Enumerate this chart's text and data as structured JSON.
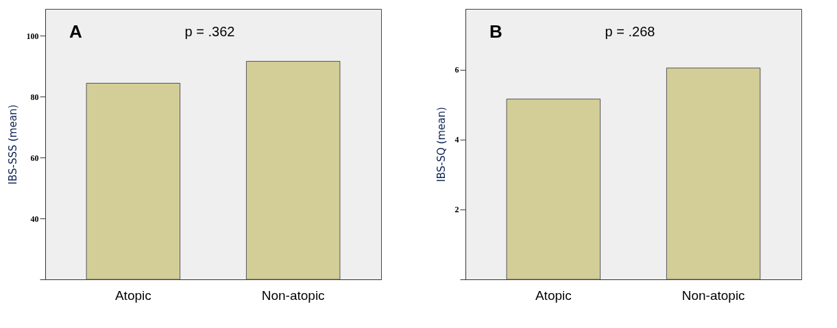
{
  "chart_data": [
    {
      "type": "bar",
      "ylabel": "IBS-SSS (mean)",
      "categories": [
        "Atopic",
        "Non-atopic"
      ],
      "values": [
        84.4,
        91.6
      ],
      "color": "#d3ce98",
      "ylim": [
        20,
        108.8
      ],
      "yticks": [
        {
          "value": 20,
          "label": null
        },
        40,
        60,
        80,
        100
      ],
      "annotations": [
        "A",
        "p = .362"
      ],
      "grid": false
    },
    {
      "type": "bar",
      "ylabel": "IBS-SQ (mean)",
      "categories": [
        "Atopic",
        "Non-atopic"
      ],
      "values": [
        5.16,
        6.05
      ],
      "color": "#d3ce98",
      "ylim": [
        0,
        7.74
      ],
      "yticks": [
        {
          "value": 0,
          "label": null
        },
        2,
        4,
        6
      ],
      "annotations": [
        "B",
        "p = .268"
      ],
      "grid": false
    }
  ]
}
